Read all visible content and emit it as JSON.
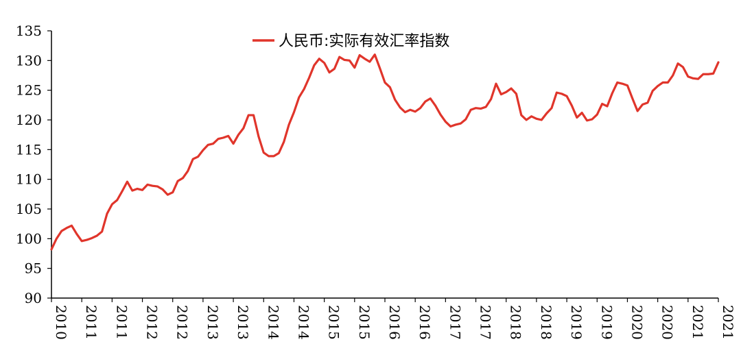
{
  "chart_data": {
    "type": "line",
    "title": "",
    "xlabel": "",
    "ylabel": "",
    "ylim": [
      90,
      135
    ],
    "yticks": [
      90,
      95,
      100,
      105,
      110,
      115,
      120,
      125,
      130,
      135
    ],
    "xtick_labels": [
      "2010",
      "2011",
      "2011",
      "2012",
      "2012",
      "2013",
      "2013",
      "2014",
      "2014",
      "2015",
      "2015",
      "2016",
      "2016",
      "2017",
      "2017",
      "2018",
      "2018",
      "2019",
      "2019",
      "2020",
      "2020",
      "2021",
      "2021"
    ],
    "legend_position": "top-center",
    "grid": false,
    "colors": {
      "series": "#e0352b"
    },
    "series": [
      {
        "name": "人民币:实际有效汇率指数",
        "values": [
          98.2,
          100.0,
          101.3,
          101.8,
          102.2,
          100.8,
          99.6,
          99.8,
          100.1,
          100.5,
          101.2,
          104.2,
          105.8,
          106.5,
          108.0,
          109.6,
          108.1,
          108.4,
          108.2,
          109.1,
          108.9,
          108.8,
          108.3,
          107.4,
          107.8,
          109.7,
          110.2,
          111.4,
          113.4,
          113.8,
          114.9,
          115.8,
          116.0,
          116.8,
          117.0,
          117.3,
          116.0,
          117.5,
          118.6,
          120.8,
          120.8,
          117.2,
          114.5,
          113.9,
          113.9,
          114.4,
          116.3,
          119.2,
          121.3,
          123.8,
          125.2,
          127.1,
          129.2,
          130.3,
          129.6,
          128.0,
          128.6,
          130.6,
          130.1,
          130.0,
          128.8,
          130.9,
          130.3,
          129.8,
          131.0,
          128.7,
          126.3,
          125.5,
          123.4,
          122.1,
          121.3,
          121.7,
          121.4,
          122.0,
          123.1,
          123.6,
          122.4,
          120.9,
          119.7,
          118.9,
          119.2,
          119.4,
          120.1,
          121.7,
          122.0,
          121.9,
          122.2,
          123.5,
          126.1,
          124.3,
          124.7,
          125.3,
          124.4,
          120.8,
          120.0,
          120.6,
          120.2,
          120.0,
          121.1,
          122.0,
          124.6,
          124.4,
          124.0,
          122.4,
          120.4,
          121.2,
          119.9,
          120.1,
          120.9,
          122.7,
          122.3,
          124.5,
          126.3,
          126.1,
          125.8,
          123.6,
          121.5,
          122.6,
          122.9,
          124.9,
          125.7,
          126.3,
          126.3,
          127.5,
          129.5,
          128.9,
          127.3,
          127.0,
          126.9,
          127.7,
          127.7,
          127.8,
          129.7
        ]
      }
    ]
  }
}
